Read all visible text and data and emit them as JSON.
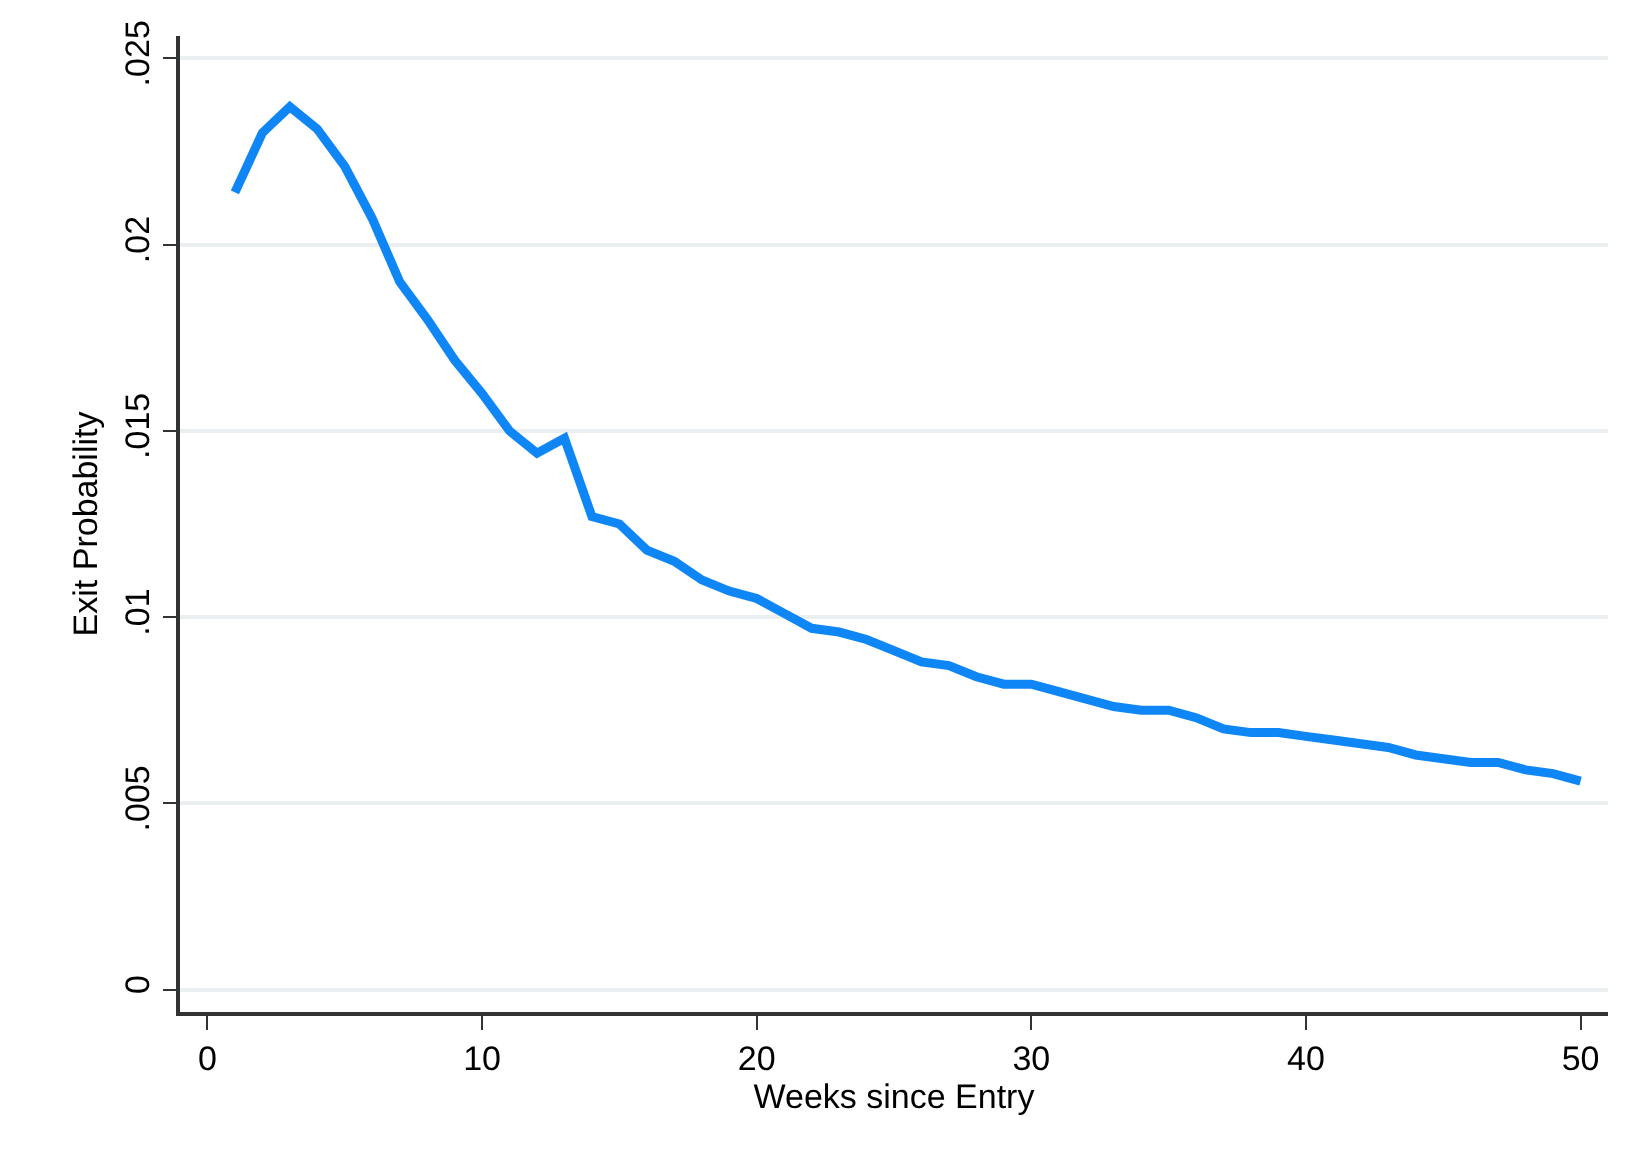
{
  "chart_data": {
    "type": "line",
    "xlabel": "Weeks since Entry",
    "ylabel": "Exit Probability",
    "x": [
      1,
      2,
      3,
      4,
      5,
      6,
      7,
      8,
      9,
      10,
      11,
      12,
      13,
      14,
      15,
      16,
      17,
      18,
      19,
      20,
      21,
      22,
      23,
      24,
      25,
      26,
      27,
      28,
      29,
      30,
      31,
      32,
      33,
      34,
      35,
      36,
      37,
      38,
      39,
      40,
      41,
      42,
      43,
      44,
      45,
      46,
      47,
      48,
      49,
      50
    ],
    "series": [
      {
        "color": "#0f86f5",
        "values": [
          0.0214,
          0.023,
          0.0237,
          0.0231,
          0.0221,
          0.0207,
          0.019,
          0.018,
          0.0169,
          0.016,
          0.015,
          0.0144,
          0.0148,
          0.0127,
          0.0125,
          0.0118,
          0.0115,
          0.011,
          0.0107,
          0.0105,
          0.0101,
          0.0097,
          0.0096,
          0.0094,
          0.0091,
          0.0088,
          0.0087,
          0.0084,
          0.0082,
          0.0082,
          0.008,
          0.0078,
          0.0076,
          0.0075,
          0.0075,
          0.0073,
          0.007,
          0.0069,
          0.0069,
          0.0068,
          0.0067,
          0.0066,
          0.0065,
          0.0063,
          0.0062,
          0.0061,
          0.0061,
          0.0059,
          0.0058,
          0.0056
        ]
      }
    ],
    "xlim": [
      -1,
      51
    ],
    "ylim": [
      -0.0006,
      0.0256
    ],
    "xticks": [
      0,
      10,
      20,
      30,
      40,
      50
    ],
    "yticks": [
      {
        "value": 0,
        "label": "0"
      },
      {
        "value": 0.005,
        "label": ".005"
      },
      {
        "value": 0.01,
        "label": ".01"
      },
      {
        "value": 0.015,
        "label": ".015"
      },
      {
        "value": 0.02,
        "label": ".02"
      },
      {
        "value": 0.025,
        "label": ".025"
      }
    ],
    "grid": "y",
    "marker": "none",
    "line_style": "solid"
  }
}
